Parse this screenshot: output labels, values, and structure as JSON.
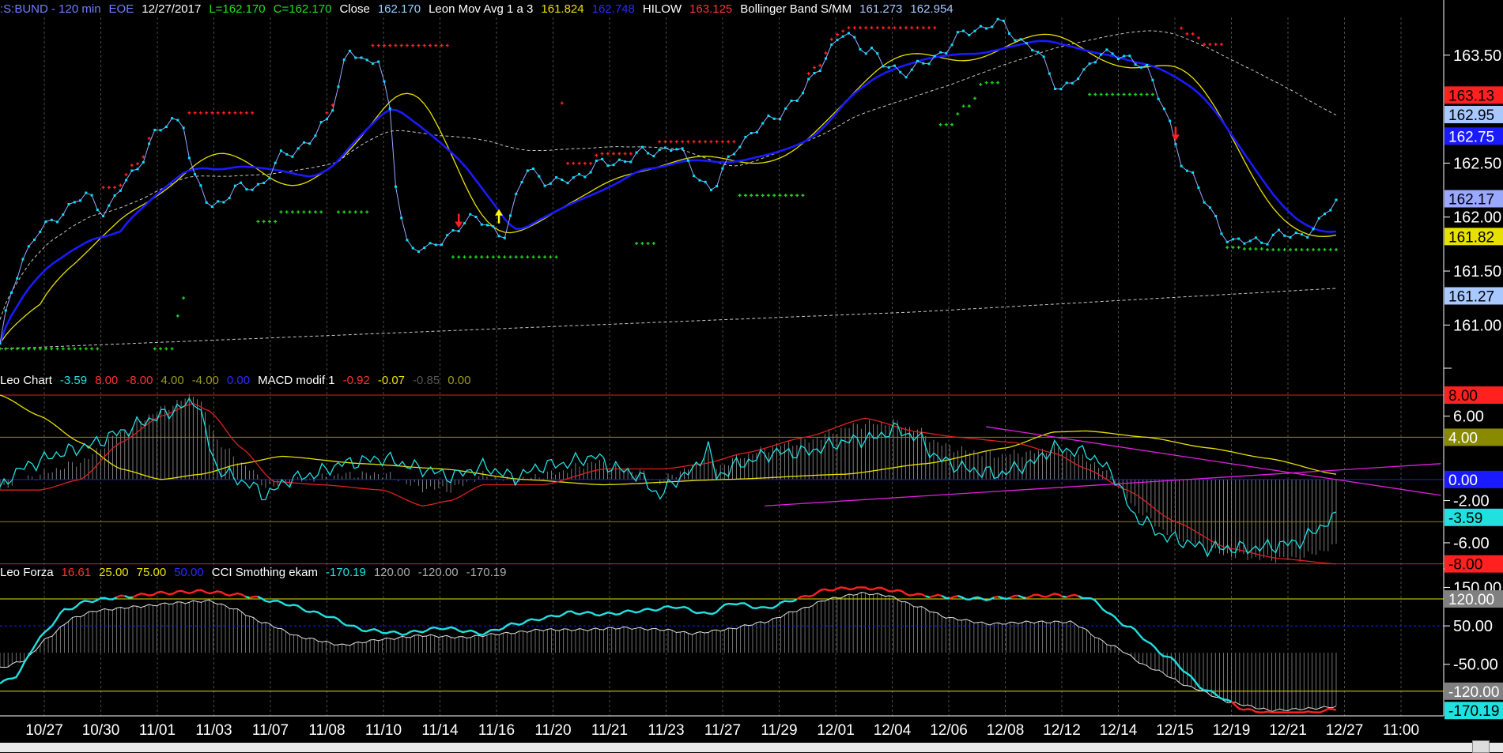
{
  "header": {
    "symbol": ":S:BUND - 120 min",
    "eoe": "EOE",
    "date": "12/27/2017",
    "low": "L=162.170",
    "close": "C=162.170",
    "close_label": "Close",
    "close_value": "162.170",
    "leon_label": "Leon Mov Avg 1 a 3",
    "leon_v1": "161.824",
    "leon_v2": "162.748",
    "hilow_label": "HILOW",
    "hilow_value": "163.125",
    "boll_label": "Bollinger Band S/MM",
    "boll_v1": "161.273",
    "boll_v2": "162.954"
  },
  "panel2_header": {
    "name": "Leo Chart",
    "v1": "-3.59",
    "v2": "8.00",
    "v3": "-8.00",
    "v4": "4.00",
    "v5": "-4.00",
    "v6": "0.00",
    "macd_label": "MACD modif 1",
    "m1": "-0.92",
    "m2": "-0.07",
    "m3": "-0.85",
    "m4": "0.00"
  },
  "panel3_header": {
    "name": "Leo Forza",
    "v1": "16.61",
    "v2": "25.00",
    "v3": "75.00",
    "v4": "50.00",
    "cci_label": "CCI Smothing ekam",
    "c1": "-170.19",
    "c2": "120.00",
    "c3": "-120.00",
    "c4": "-170.19"
  },
  "colors": {
    "price": "#9aa8ff",
    "dots": "#00e5ff",
    "ma_blue": "#1a1aff",
    "ma_yellow": "#e8e000",
    "hilow_red": "#ff2020",
    "hilow_green": "#20d020",
    "band": "#c8c8c8",
    "leo_cyan": "#20e0e0",
    "macd_red": "#e02020",
    "magenta": "#e020e0"
  },
  "chart_data": [
    {
      "type": "line",
      "title": "",
      "ylim": [
        160.6,
        163.85
      ],
      "y_ticks": [
        "163.50",
        "162.50",
        "162.00",
        "161.50",
        "161.00"
      ],
      "y_tick_values": [
        163.5,
        162.5,
        162.0,
        161.5,
        161.0
      ],
      "x_labels": [
        "10/27",
        "10/30",
        "11/01",
        "11/03",
        "11/07",
        "11/08",
        "11/10",
        "11/14",
        "11/16",
        "11/20",
        "11/21",
        "11/23",
        "11/27",
        "11/29",
        "12/01",
        "12/04",
        "12/06",
        "12/08",
        "12/12",
        "12/14",
        "12/15",
        "12/19",
        "12/21",
        "12/27",
        "11:00"
      ],
      "n_bars": 234,
      "close_keys": [
        [
          0,
          160.8
        ],
        [
          6,
          161.3
        ],
        [
          12,
          161.6
        ],
        [
          22,
          161.85
        ],
        [
          35,
          162.05
        ],
        [
          50,
          162.2
        ],
        [
          60,
          162.05
        ],
        [
          75,
          162.4
        ],
        [
          88,
          162.75
        ],
        [
          98,
          162.9
        ],
        [
          104,
          162.9
        ],
        [
          110,
          162.35
        ],
        [
          120,
          162.1
        ],
        [
          134,
          162.25
        ],
        [
          148,
          162.3
        ],
        [
          160,
          162.55
        ],
        [
          175,
          162.7
        ],
        [
          185,
          162.85
        ],
        [
          198,
          163.55
        ],
        [
          208,
          163.4
        ],
        [
          215,
          163.5
        ],
        [
          221,
          163.05
        ],
        [
          226,
          162.1
        ],
        [
          232,
          161.7
        ],
        [
          238,
          161.75
        ],
        [
          244,
          161.72
        ],
        [
          251,
          161.75
        ],
        [
          265,
          162.0
        ],
        [
          286,
          161.85
        ],
        [
          300,
          162.45
        ],
        [
          315,
          162.3
        ],
        [
          345,
          162.5
        ],
        [
          382,
          162.65
        ],
        [
          405,
          162.25
        ],
        [
          420,
          162.7
        ],
        [
          451,
          163.05
        ],
        [
          472,
          163.55
        ],
        [
          480,
          163.7
        ],
        [
          494,
          163.55
        ],
        [
          502,
          163.4
        ],
        [
          517,
          163.35
        ],
        [
          555,
          163.75
        ],
        [
          565,
          163.8
        ],
        [
          585,
          163.6
        ],
        [
          602,
          163.2
        ],
        [
          615,
          163.3
        ],
        [
          625,
          163.55
        ],
        [
          640,
          163.45
        ],
        [
          650,
          163.45
        ],
        [
          658,
          163.1
        ],
        [
          674,
          162.45
        ],
        [
          688,
          162.05
        ],
        [
          700,
          161.75
        ],
        [
          718,
          161.8
        ],
        [
          740,
          161.85
        ],
        [
          748,
          161.9
        ],
        [
          759,
          162.17
        ]
      ],
      "close_series": {
        "name": "Close",
        "last": 162.17,
        "dot_color": "cyan"
      },
      "blue_ma": {
        "name": "Leon Mov Avg 1 a 3",
        "last": 162.748
      },
      "yellow_ma": {
        "name": "Leon Mov Avg 1 a 3",
        "last": 161.824
      },
      "hilow": {
        "name": "HILOW",
        "last": 163.125
      },
      "boll_upper": {
        "name": "Bollinger Band S/MM",
        "last": 162.954
      },
      "boll_lower": {
        "name": "Bollinger Band S/MM",
        "last": 161.273
      },
      "right_labels": [
        {
          "text": "163.13",
          "value": 163.13,
          "bg": "#ff2020",
          "fg": "#000"
        },
        {
          "text": "162.95",
          "value": 162.95,
          "bg": "#a8c8ff",
          "fg": "#000"
        },
        {
          "text": "162.75",
          "value": 162.75,
          "bg": "#1a1aff",
          "fg": "#fff"
        },
        {
          "text": "162.17",
          "value": 162.17,
          "bg": "#9aa8ff",
          "fg": "#000"
        },
        {
          "text": "161.82",
          "value": 161.82,
          "bg": "#e8e000",
          "fg": "#000"
        },
        {
          "text": "161.27",
          "value": 161.27,
          "bg": "#a8c8ff",
          "fg": "#000"
        }
      ],
      "signals": [
        {
          "kind": "sell",
          "bar": 80,
          "color": "#ff2020"
        },
        {
          "kind": "buy",
          "bar": 87,
          "color": "#ffff00"
        },
        {
          "kind": "sell",
          "bar": 205,
          "color": "#ff2020"
        }
      ]
    },
    {
      "type": "line",
      "title": "Leo Chart / MACD modif 1",
      "ylim": [
        -8.4,
        8.6
      ],
      "y_ticks": [
        "6.00",
        "-2.00",
        "-6.00"
      ],
      "y_tick_values": [
        6,
        -2,
        -6
      ],
      "levels": [
        8,
        4,
        0,
        -4,
        -8
      ],
      "right_labels": [
        {
          "text": "8.00",
          "value": 8.0,
          "bg": "#ff2020",
          "fg": "#000"
        },
        {
          "text": "4.00",
          "value": 4.0,
          "bg": "#8a8a00",
          "fg": "#fff"
        },
        {
          "text": "0.00",
          "value": 0.0,
          "bg": "#1a1aff",
          "fg": "#fff"
        },
        {
          "text": "-3.59",
          "value": -3.59,
          "bg": "#20e0e0",
          "fg": "#000"
        },
        {
          "text": "-8.00",
          "value": -8.0,
          "bg": "#ff2020",
          "fg": "#000"
        }
      ],
      "cyan_keys": [
        [
          0,
          -1
        ],
        [
          3,
          0.5
        ],
        [
          8,
          1.5
        ],
        [
          15,
          2.5
        ],
        [
          22,
          3.2
        ],
        [
          30,
          4.5
        ],
        [
          38,
          5.8
        ],
        [
          46,
          7.0
        ],
        [
          49,
          7.5
        ],
        [
          52,
          3.2
        ],
        [
          54,
          1.0
        ],
        [
          58,
          0.2
        ],
        [
          62,
          -0.5
        ],
        [
          66,
          -1.5
        ],
        [
          72,
          0
        ],
        [
          78,
          0.5
        ],
        [
          85,
          1.5
        ],
        [
          95,
          2.0
        ],
        [
          105,
          1.0
        ],
        [
          112,
          0.3
        ],
        [
          120,
          1.2
        ],
        [
          128,
          0.2
        ],
        [
          135,
          1.3
        ],
        [
          140,
          1.5
        ],
        [
          148,
          2.2
        ],
        [
          152,
          1.2
        ],
        [
          158,
          0.5
        ],
        [
          164,
          -1.5
        ],
        [
          168,
          0
        ],
        [
          172,
          0.8
        ],
        [
          176,
          3.0
        ],
        [
          178,
          0.3
        ],
        [
          184,
          1.5
        ],
        [
          192,
          2.5
        ],
        [
          200,
          2.6
        ],
        [
          210,
          3.6
        ],
        [
          218,
          4.0
        ],
        [
          222,
          4.8
        ],
        [
          228,
          4.0
        ],
        [
          233,
          2.0
        ],
        [
          240,
          1.0
        ],
        [
          248,
          0.5
        ],
        [
          256,
          1.5
        ],
        [
          262,
          3.0
        ],
        [
          270,
          2.5
        ],
        [
          276,
          0.8
        ],
        [
          282,
          -3.5
        ],
        [
          290,
          -5.5
        ],
        [
          300,
          -6.5
        ],
        [
          312,
          -6.5
        ],
        [
          322,
          -6.0
        ],
        [
          332,
          -3.6
        ]
      ],
      "red_keys": [
        [
          0,
          -1
        ],
        [
          10,
          -1
        ],
        [
          20,
          0
        ],
        [
          30,
          3.5
        ],
        [
          40,
          6.0
        ],
        [
          48,
          7.2
        ],
        [
          52,
          6.5
        ],
        [
          60,
          3.0
        ],
        [
          68,
          -0.2
        ],
        [
          80,
          -0.5
        ],
        [
          95,
          -1.0
        ],
        [
          105,
          -2.5
        ],
        [
          112,
          -2.0
        ],
        [
          120,
          -0.5
        ],
        [
          135,
          -0.5
        ],
        [
          150,
          1.0
        ],
        [
          165,
          1.0
        ],
        [
          175,
          1.5
        ],
        [
          185,
          2.5
        ],
        [
          200,
          4.0
        ],
        [
          215,
          5.8
        ],
        [
          228,
          4.5
        ],
        [
          238,
          4.0
        ],
        [
          252,
          3.5
        ],
        [
          262,
          2.5
        ],
        [
          270,
          1.0
        ],
        [
          280,
          -1.0
        ],
        [
          292,
          -4.0
        ],
        [
          305,
          -6.5
        ],
        [
          318,
          -7.5
        ],
        [
          332,
          -8.0
        ]
      ],
      "yellow_keys": [
        [
          0,
          8.0
        ],
        [
          10,
          6.0
        ],
        [
          20,
          3.5
        ],
        [
          30,
          1.0
        ],
        [
          40,
          0
        ],
        [
          50,
          0.5
        ],
        [
          60,
          1.5
        ],
        [
          70,
          2.2
        ],
        [
          90,
          1.5
        ],
        [
          110,
          1.0
        ],
        [
          130,
          0
        ],
        [
          150,
          -0.5
        ],
        [
          180,
          0
        ],
        [
          210,
          0.5
        ],
        [
          230,
          1.5
        ],
        [
          250,
          3.0
        ],
        [
          262,
          4.5
        ],
        [
          270,
          4.6
        ],
        [
          285,
          4.0
        ],
        [
          300,
          3.0
        ],
        [
          315,
          2.0
        ],
        [
          332,
          0.5
        ]
      ],
      "magenta_lines": [
        {
          "from": [
            190,
            -2.5
          ],
          "to": [
            358,
            1.5
          ]
        },
        {
          "from": [
            245,
            5.0
          ],
          "to": [
            358,
            -1.5
          ]
        }
      ]
    },
    {
      "type": "line",
      "title": "Leo Forza / CCI Smothing ekam",
      "ylim": [
        -180,
        155
      ],
      "y_ticks": [
        "150.00",
        "50.00",
        "-50.00"
      ],
      "y_tick_values": [
        150,
        50,
        -50
      ],
      "levels": [
        120,
        50,
        -120
      ],
      "right_labels": [
        {
          "text": "120.00",
          "value": 120.0,
          "bg": "#808080",
          "fg": "#fff"
        },
        {
          "text": "-120.00",
          "value": -120.0,
          "bg": "#808080",
          "fg": "#fff"
        },
        {
          "text": "-170.19",
          "value": -170.19,
          "bg": "#20e0e0",
          "fg": "#000"
        }
      ],
      "cci_keys": [
        [
          0,
          -100
        ],
        [
          4,
          -80
        ],
        [
          10,
          20
        ],
        [
          16,
          90
        ],
        [
          22,
          115
        ],
        [
          30,
          125
        ],
        [
          40,
          135
        ],
        [
          50,
          140
        ],
        [
          60,
          130
        ],
        [
          70,
          110
        ],
        [
          80,
          80
        ],
        [
          90,
          40
        ],
        [
          100,
          30
        ],
        [
          110,
          45
        ],
        [
          120,
          30
        ],
        [
          128,
          55
        ],
        [
          135,
          70
        ],
        [
          142,
          85
        ],
        [
          150,
          80
        ],
        [
          160,
          90
        ],
        [
          168,
          100
        ],
        [
          176,
          80
        ],
        [
          182,
          110
        ],
        [
          190,
          95
        ],
        [
          198,
          120
        ],
        [
          206,
          145
        ],
        [
          214,
          150
        ],
        [
          220,
          145
        ],
        [
          228,
          130
        ],
        [
          236,
          125
        ],
        [
          244,
          120
        ],
        [
          252,
          125
        ],
        [
          262,
          130
        ],
        [
          270,
          125
        ],
        [
          280,
          50
        ],
        [
          290,
          -30
        ],
        [
          300,
          -120
        ],
        [
          310,
          -170
        ],
        [
          318,
          -180
        ],
        [
          328,
          -175
        ],
        [
          332,
          -165
        ]
      ],
      "gray_keys": [
        [
          0,
          -60
        ],
        [
          6,
          -40
        ],
        [
          12,
          20
        ],
        [
          18,
          70
        ],
        [
          24,
          90
        ],
        [
          34,
          100
        ],
        [
          44,
          110
        ],
        [
          52,
          115
        ],
        [
          58,
          95
        ],
        [
          65,
          60
        ],
        [
          75,
          20
        ],
        [
          85,
          0
        ],
        [
          95,
          15
        ],
        [
          105,
          25
        ],
        [
          115,
          20
        ],
        [
          125,
          30
        ],
        [
          135,
          40
        ],
        [
          145,
          40
        ],
        [
          155,
          45
        ],
        [
          165,
          40
        ],
        [
          172,
          30
        ],
        [
          180,
          40
        ],
        [
          190,
          60
        ],
        [
          198,
          90
        ],
        [
          206,
          120
        ],
        [
          214,
          135
        ],
        [
          220,
          130
        ],
        [
          228,
          100
        ],
        [
          236,
          70
        ],
        [
          246,
          55
        ],
        [
          256,
          60
        ],
        [
          266,
          60
        ],
        [
          276,
          0
        ],
        [
          286,
          -60
        ],
        [
          296,
          -110
        ],
        [
          306,
          -150
        ],
        [
          316,
          -170
        ],
        [
          326,
          -165
        ],
        [
          332,
          -160
        ]
      ]
    }
  ]
}
